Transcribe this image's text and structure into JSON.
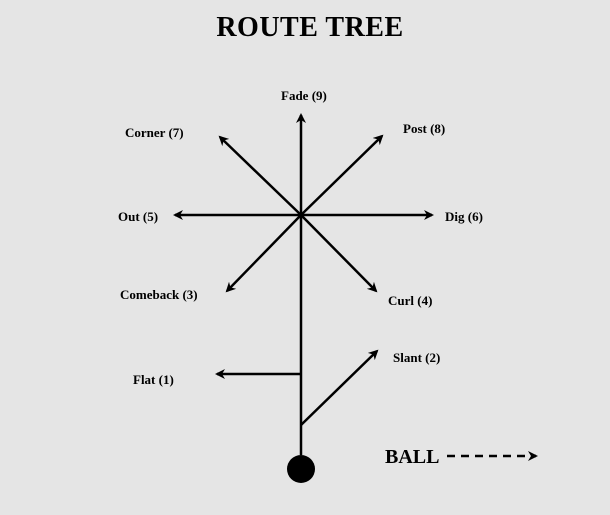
{
  "title": "ROUTE TREE",
  "routes": {
    "fade": "Fade (9)",
    "post": "Post (8)",
    "corner": "Corner (7)",
    "out": "Out (5)",
    "dig": "Dig (6)",
    "comeback": "Comeback (3)",
    "curl": "Curl (4)",
    "slant": "Slant (2)",
    "flat": "Flat (1)"
  },
  "ball_label": "BALL",
  "colors": {
    "background": "#e5e5e5",
    "lines": "#000000"
  }
}
